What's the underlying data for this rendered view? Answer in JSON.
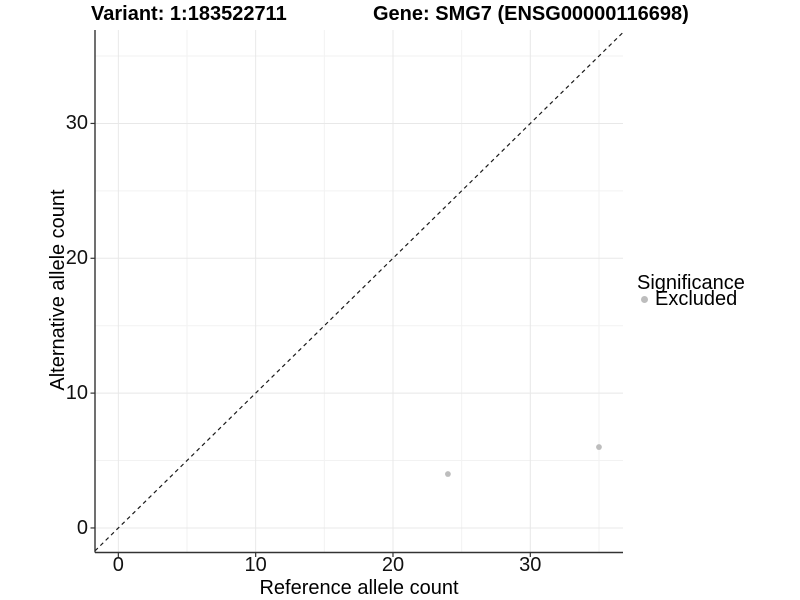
{
  "chart_data": {
    "type": "scatter",
    "title_left": "Variant: 1:183522711",
    "title_right": "Gene: SMG7 (ENSG00000116698)",
    "xlabel": "Reference allele count",
    "ylabel": "Alternative allele count",
    "xlim": [
      -1.7,
      36.75
    ],
    "ylim": [
      -1.82,
      36.93
    ],
    "xticks": [
      0,
      10,
      20,
      30
    ],
    "yticks": [
      0,
      10,
      20,
      30
    ],
    "x_minor": [
      5,
      15,
      25,
      35
    ],
    "y_minor": [
      5,
      15,
      25,
      35
    ],
    "grid": "major-and-minor",
    "identity_line": {
      "type": "y=x",
      "style": "dashed"
    },
    "series": [
      {
        "name": "Excluded",
        "color": "#bdbdbd",
        "points": [
          {
            "x": 24,
            "y": 4
          },
          {
            "x": 35,
            "y": 6
          }
        ]
      }
    ],
    "legend": {
      "title": "Significance",
      "position": "right",
      "items": [
        {
          "label": "Excluded",
          "color": "#bdbdbd"
        }
      ]
    }
  },
  "colors": {
    "background": "#ffffff",
    "axis_line": "#333333",
    "tick_mark": "#333333",
    "grid_major": "#e8e8e8",
    "grid_minor": "#f2f2f2",
    "identity_line": "#1a1a1a",
    "title_text": "#000000",
    "tick_text": "#111111"
  }
}
